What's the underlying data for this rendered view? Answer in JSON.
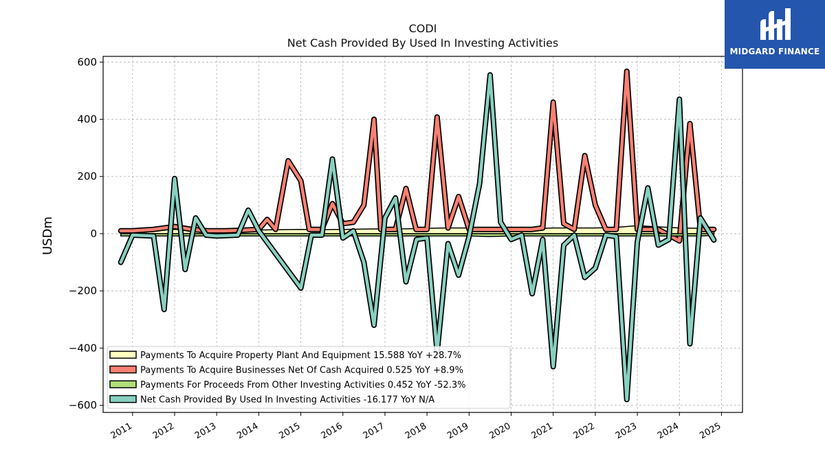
{
  "chart_data": {
    "type": "line",
    "title": "CODI",
    "subtitle": "Net Cash Provided By Used In Investing Activities",
    "ylabel": "USDm",
    "xlabel": "",
    "ylim": [
      -625,
      620
    ],
    "xlim": [
      2010.3,
      2025.5
    ],
    "yticks": [
      -600,
      -400,
      -200,
      0,
      200,
      400,
      600
    ],
    "yticklabels": [
      "−600",
      "−400",
      "−200",
      "0",
      "200",
      "400",
      "600"
    ],
    "xticks": [
      "2011",
      "2012",
      "2013",
      "2014",
      "2015",
      "2016",
      "2017",
      "2018",
      "2019",
      "2020",
      "2021",
      "2022",
      "2023",
      "2024",
      "2025"
    ],
    "grid": true,
    "legend_position": "lower-left",
    "series": [
      {
        "name": "Payments To Acquire Property Plant And Equipment  15.588 YoY +28.7%",
        "color": "#ffffc0",
        "fill": true,
        "points": [
          [
            2010.72,
            10
          ],
          [
            2011.0,
            12
          ],
          [
            2011.5,
            13
          ],
          [
            2012.0,
            15
          ],
          [
            2012.5,
            13
          ],
          [
            2013.0,
            15
          ],
          [
            2013.5,
            12
          ],
          [
            2014.0,
            13
          ],
          [
            2014.5,
            14
          ],
          [
            2015.0,
            15
          ],
          [
            2015.5,
            14
          ],
          [
            2016.0,
            15
          ],
          [
            2016.5,
            16
          ],
          [
            2017.0,
            17
          ],
          [
            2017.5,
            17
          ],
          [
            2018.0,
            19
          ],
          [
            2018.5,
            20
          ],
          [
            2019.0,
            20
          ],
          [
            2019.5,
            18
          ],
          [
            2020.0,
            17
          ],
          [
            2020.5,
            17
          ],
          [
            2021.0,
            20
          ],
          [
            2021.5,
            20
          ],
          [
            2022.0,
            20
          ],
          [
            2022.5,
            22
          ],
          [
            2023.0,
            28
          ],
          [
            2023.5,
            24
          ],
          [
            2024.0,
            20
          ],
          [
            2024.5,
            19
          ],
          [
            2024.82,
            22
          ]
        ]
      },
      {
        "name": "Payments To Acquire Businesses Net Of Cash Acquired  0.525 YoY +8.9%",
        "color": "#fa8072",
        "fill": false,
        "points": [
          [
            2010.72,
            10
          ],
          [
            2011.0,
            10
          ],
          [
            2011.5,
            15
          ],
          [
            2012.0,
            25
          ],
          [
            2012.4,
            15
          ],
          [
            2012.8,
            10
          ],
          [
            2013.2,
            10
          ],
          [
            2013.6,
            12
          ],
          [
            2014.0,
            15
          ],
          [
            2014.2,
            50
          ],
          [
            2014.4,
            15
          ],
          [
            2014.7,
            255
          ],
          [
            2015.0,
            185
          ],
          [
            2015.2,
            15
          ],
          [
            2015.5,
            15
          ],
          [
            2015.75,
            105
          ],
          [
            2016.0,
            35
          ],
          [
            2016.25,
            40
          ],
          [
            2016.5,
            100
          ],
          [
            2016.74,
            400
          ],
          [
            2016.9,
            15
          ],
          [
            2017.25,
            15
          ],
          [
            2017.5,
            158
          ],
          [
            2017.74,
            15
          ],
          [
            2018.0,
            15
          ],
          [
            2018.24,
            408
          ],
          [
            2018.5,
            20
          ],
          [
            2018.75,
            130
          ],
          [
            2019.0,
            15
          ],
          [
            2019.5,
            15
          ],
          [
            2020.0,
            15
          ],
          [
            2020.5,
            15
          ],
          [
            2020.75,
            20
          ],
          [
            2021.0,
            460
          ],
          [
            2021.25,
            35
          ],
          [
            2021.5,
            15
          ],
          [
            2021.75,
            273
          ],
          [
            2022.0,
            100
          ],
          [
            2022.25,
            15
          ],
          [
            2022.5,
            15
          ],
          [
            2022.75,
            568
          ],
          [
            2023.0,
            15
          ],
          [
            2023.5,
            15
          ],
          [
            2024.0,
            -25
          ],
          [
            2024.25,
            385
          ],
          [
            2024.5,
            15
          ],
          [
            2024.82,
            15
          ]
        ]
      },
      {
        "name": "Payments For Proceeds From Other Investing Activities  0.452 YoY -52.3%",
        "color": "#b0dd7a",
        "fill": true,
        "points": [
          [
            2010.72,
            -8
          ],
          [
            2011.0,
            -8
          ],
          [
            2011.5,
            -8
          ],
          [
            2012.0,
            -8
          ],
          [
            2012.5,
            -8
          ],
          [
            2013.0,
            -8
          ],
          [
            2013.5,
            -8
          ],
          [
            2014.0,
            -8
          ],
          [
            2014.5,
            -8
          ],
          [
            2015.0,
            -8
          ],
          [
            2015.5,
            -8
          ],
          [
            2016.0,
            -8
          ],
          [
            2016.5,
            -8
          ],
          [
            2017.0,
            -8
          ],
          [
            2017.5,
            -8
          ],
          [
            2018.0,
            -8
          ],
          [
            2018.5,
            -8
          ],
          [
            2019.0,
            -8
          ],
          [
            2019.5,
            -10
          ],
          [
            2020.0,
            -8
          ],
          [
            2020.5,
            -8
          ],
          [
            2021.0,
            -8
          ],
          [
            2021.5,
            -8
          ],
          [
            2022.0,
            -8
          ],
          [
            2022.5,
            -8
          ],
          [
            2023.0,
            -8
          ],
          [
            2023.5,
            -8
          ],
          [
            2024.0,
            -8
          ],
          [
            2024.5,
            -8
          ],
          [
            2024.82,
            -6
          ]
        ]
      },
      {
        "name": "Net Cash Provided By Used In Investing Activities  -16.177 YoY N/A",
        "color": "#88d0c0",
        "fill": false,
        "points": [
          [
            2010.72,
            -100
          ],
          [
            2011.0,
            -5
          ],
          [
            2011.5,
            -8
          ],
          [
            2011.75,
            -265
          ],
          [
            2012.0,
            193
          ],
          [
            2012.25,
            -125
          ],
          [
            2012.5,
            55
          ],
          [
            2012.75,
            -5
          ],
          [
            2013.0,
            -8
          ],
          [
            2013.5,
            -5
          ],
          [
            2013.75,
            82
          ],
          [
            2014.0,
            10
          ],
          [
            2015.0,
            -190
          ],
          [
            2015.25,
            -5
          ],
          [
            2015.5,
            -5
          ],
          [
            2015.75,
            261
          ],
          [
            2016.0,
            -15
          ],
          [
            2016.25,
            10
          ],
          [
            2016.5,
            -100
          ],
          [
            2016.74,
            -320
          ],
          [
            2017.0,
            55
          ],
          [
            2017.25,
            125
          ],
          [
            2017.5,
            -168
          ],
          [
            2017.75,
            -20
          ],
          [
            2018.0,
            -15
          ],
          [
            2018.24,
            -415
          ],
          [
            2018.5,
            -35
          ],
          [
            2018.75,
            -145
          ],
          [
            2019.0,
            -10
          ],
          [
            2019.25,
            175
          ],
          [
            2019.5,
            555
          ],
          [
            2019.75,
            40
          ],
          [
            2020.0,
            -20
          ],
          [
            2020.25,
            -5
          ],
          [
            2020.5,
            -210
          ],
          [
            2020.75,
            -20
          ],
          [
            2021.0,
            -465
          ],
          [
            2021.25,
            -40
          ],
          [
            2021.5,
            -5
          ],
          [
            2021.75,
            -153
          ],
          [
            2022.0,
            -120
          ],
          [
            2022.25,
            -5
          ],
          [
            2022.5,
            -10
          ],
          [
            2022.75,
            -580
          ],
          [
            2023.0,
            -30
          ],
          [
            2023.25,
            160
          ],
          [
            2023.5,
            -40
          ],
          [
            2023.75,
            -20
          ],
          [
            2024.0,
            470
          ],
          [
            2024.25,
            -385
          ],
          [
            2024.5,
            55
          ],
          [
            2024.82,
            -22
          ]
        ]
      }
    ]
  },
  "logo": {
    "text": "MIDGARD FINANCE",
    "background": "#2456ad"
  }
}
